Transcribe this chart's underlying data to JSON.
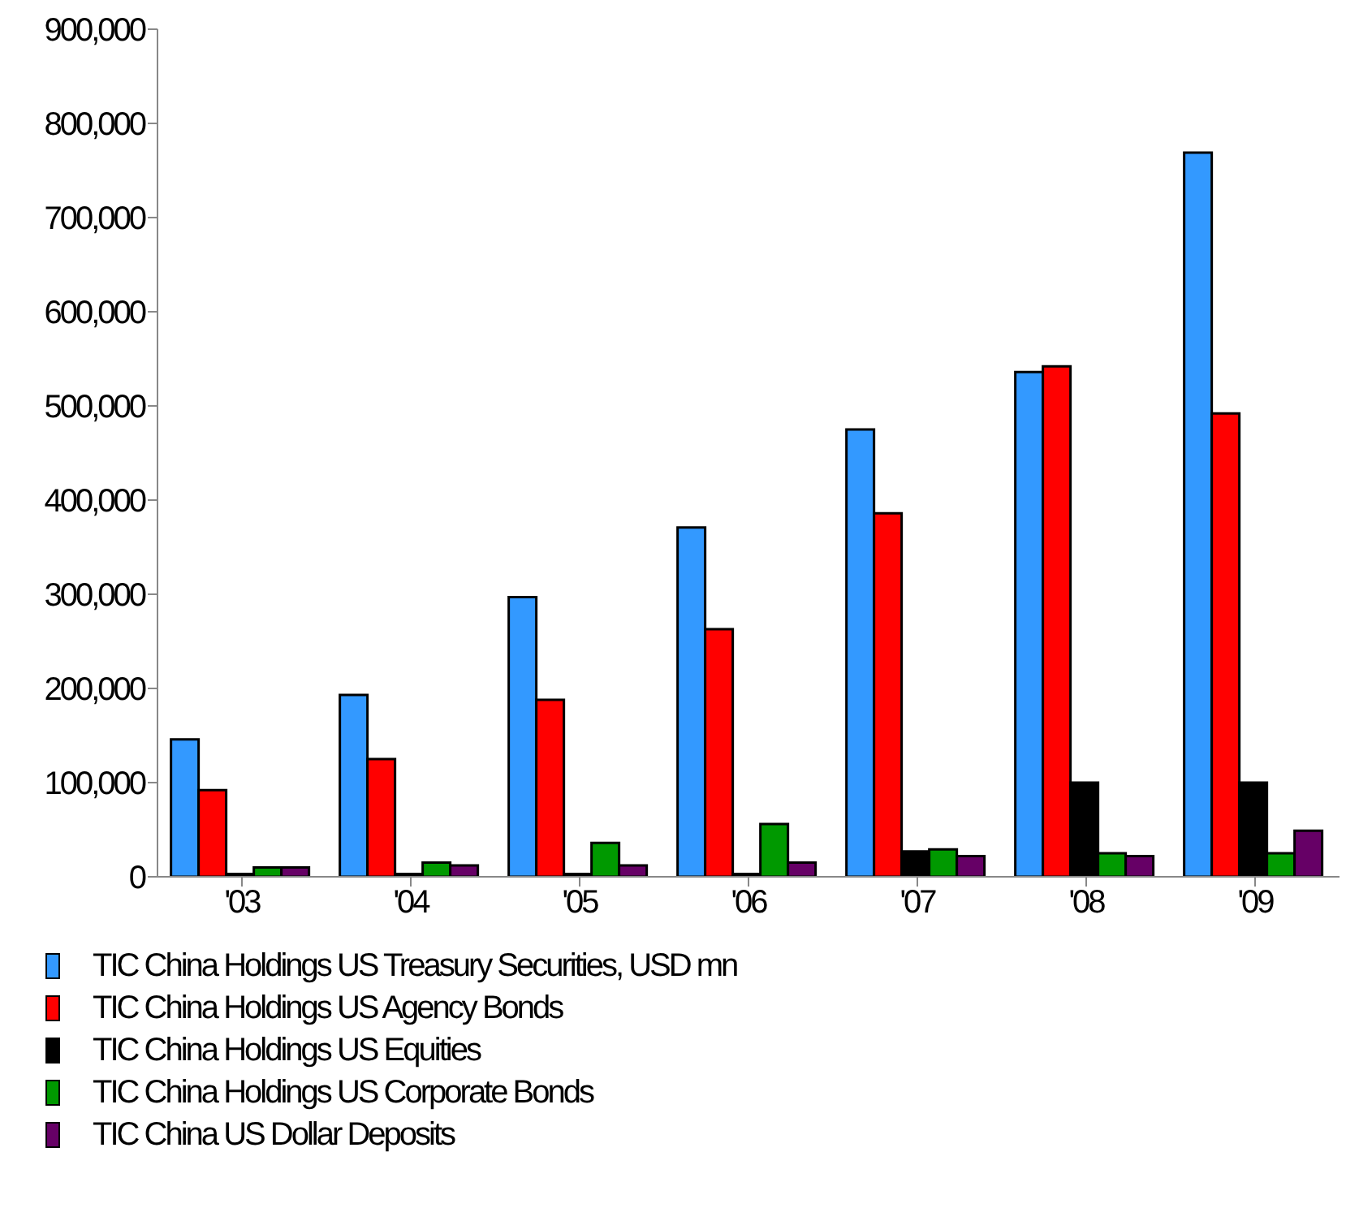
{
  "chart_data": {
    "type": "bar",
    "categories": [
      "'03",
      "'04",
      "'05",
      "'06",
      "'07",
      "'08",
      "'09"
    ],
    "series": [
      {
        "name": "TIC China Holdings US Treasury Securities, USD mn",
        "color": "#3399ff",
        "values": [
          146000,
          193000,
          297000,
          371000,
          475000,
          536000,
          769000
        ]
      },
      {
        "name": "TIC China Holdings US Agency Bonds",
        "color": "#ff0000",
        "values": [
          92000,
          125000,
          188000,
          263000,
          386000,
          542000,
          492000
        ]
      },
      {
        "name": "TIC China Holdings US Equities",
        "color": "#000000",
        "values": [
          3000,
          3000,
          3000,
          3000,
          27000,
          100000,
          100000
        ]
      },
      {
        "name": "TIC China Holdings US Corporate Bonds",
        "color": "#009900",
        "values": [
          10000,
          15000,
          36000,
          56000,
          29000,
          25000,
          25000
        ]
      },
      {
        "name": "TIC China US Dollar Deposits",
        "color": "#660066",
        "values": [
          10000,
          12000,
          12000,
          15000,
          22000,
          22000,
          49000
        ]
      }
    ],
    "ylim": [
      0,
      900000
    ],
    "yticks": [
      {
        "value": 0,
        "label": "0"
      },
      {
        "value": 100000,
        "label": "100,000"
      },
      {
        "value": 200000,
        "label": "200,000"
      },
      {
        "value": 300000,
        "label": "300,000"
      },
      {
        "value": 400000,
        "label": "400,000"
      },
      {
        "value": 500000,
        "label": "500,000"
      },
      {
        "value": 600000,
        "label": "600,000"
      },
      {
        "value": 700000,
        "label": "700,000"
      },
      {
        "value": 800000,
        "label": "800,000"
      },
      {
        "value": 900000,
        "label": "900,000"
      }
    ],
    "grid": false,
    "legend": "bottom"
  }
}
